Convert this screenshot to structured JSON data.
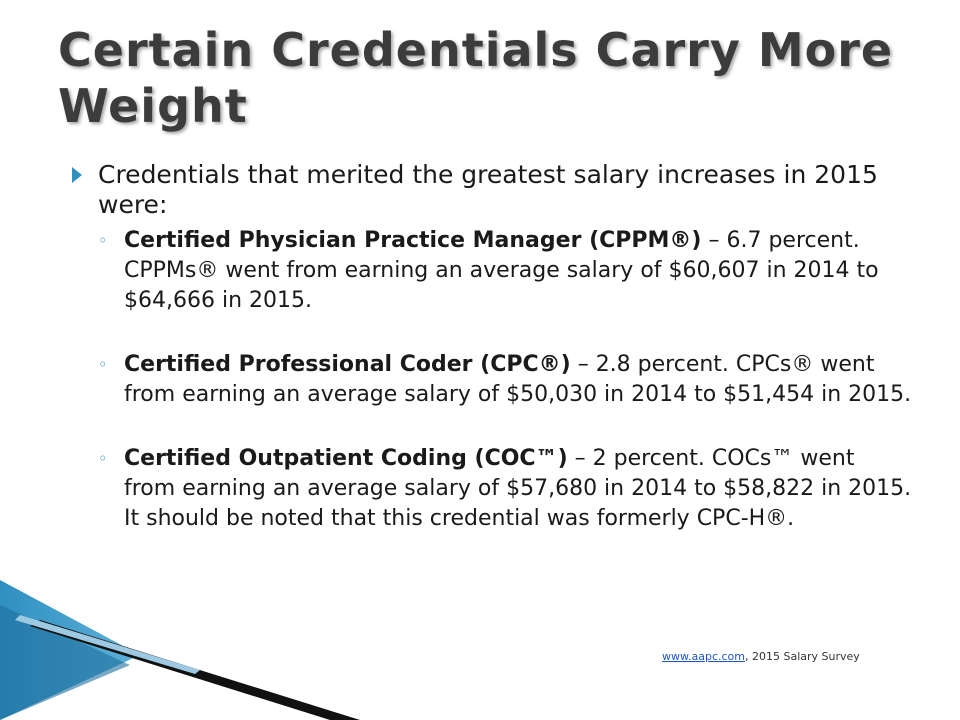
{
  "slide": {
    "title": "Certain Credentials Carry More Weight",
    "bullet": "Credentials that merited the greatest salary increases in 2015 were:",
    "items": [
      {
        "bold": "Certified Physician Practice Manager (CPPM®)",
        "text": " – 6.7 percent. CPPMs® went from earning an average salary of $60,607 in 2014 to $64,666 in 2015."
      },
      {
        "bold": "Certified Professional Coder (CPC®)",
        "text": " – 2.8 percent. CPCs® went from earning an average salary of $50,030 in 2014 to $51,454 in 2015."
      },
      {
        "bold": "Certified Outpatient Coding (COC™)",
        "text": " – 2 percent. COCs™ went from earning an average salary of $57,680 in 2014 to $58,822 in 2015. It should be noted that this credential was formerly CPC-H®."
      }
    ],
    "footer_link": "www.aapc.com",
    "footer_text": ", 2015 Salary Survey"
  },
  "colors": {
    "accent": "#2f8fc1",
    "title": "#3c3c3c",
    "swoosh": "#1a6e9e"
  },
  "icons": {
    "bullet": "arrow-bullet-icon",
    "sub_bullet": "ring-bullet-icon"
  }
}
